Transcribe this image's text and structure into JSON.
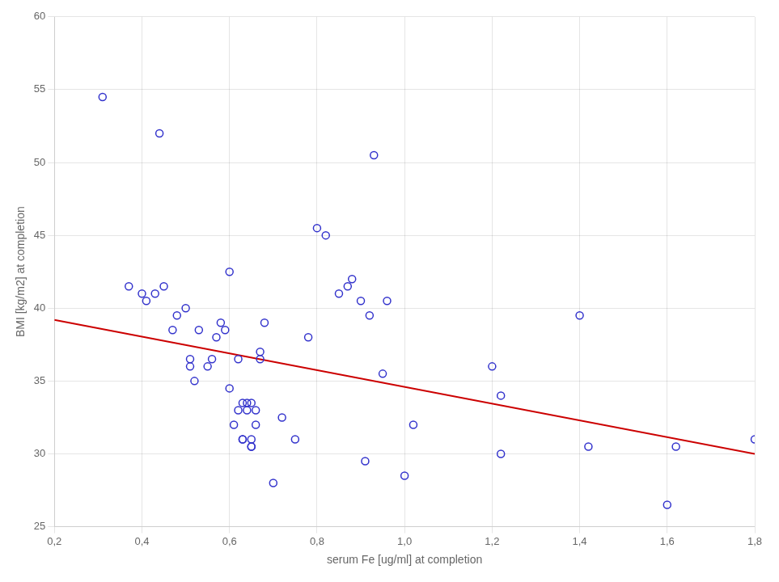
{
  "chart_data": {
    "type": "scatter",
    "xlabel": "serum Fe [ug/ml] at completion",
    "ylabel": "BMI [kg/m2] at completion",
    "series": [
      {
        "type": "scatter",
        "marker": "circle",
        "color": "#3333cc",
        "x": [
          0.31,
          0.37,
          0.4,
          0.41,
          0.43,
          0.44,
          0.45,
          0.47,
          0.48,
          0.5,
          0.51,
          0.51,
          0.52,
          0.53,
          0.55,
          0.56,
          0.57,
          0.58,
          0.59,
          0.6,
          0.6,
          0.61,
          0.62,
          0.62,
          0.63,
          0.63,
          0.63,
          0.64,
          0.64,
          0.65,
          0.65,
          0.65,
          0.65,
          0.66,
          0.66,
          0.67,
          0.67,
          0.68,
          0.7,
          0.72,
          0.75,
          0.78,
          0.8,
          0.82,
          0.85,
          0.87,
          0.88,
          0.9,
          0.91,
          0.92,
          0.93,
          0.95,
          0.96,
          1.0,
          1.02,
          1.2,
          1.22,
          1.22,
          1.4,
          1.42,
          1.6,
          1.62,
          1.8
        ],
        "values": [
          54.5,
          41.5,
          41.0,
          40.5,
          41.0,
          52.0,
          41.5,
          38.5,
          39.5,
          40.0,
          36.5,
          36.0,
          35.0,
          38.5,
          36.0,
          36.5,
          38.0,
          39.0,
          38.5,
          34.5,
          42.5,
          32.0,
          33.0,
          36.5,
          31.0,
          31.0,
          33.5,
          33.5,
          33.0,
          30.5,
          30.5,
          31.0,
          33.5,
          33.0,
          32.0,
          36.5,
          37.0,
          39.0,
          28.0,
          32.5,
          31.0,
          38.0,
          45.5,
          45.0,
          41.0,
          41.5,
          42.0,
          40.5,
          29.5,
          39.5,
          50.5,
          35.5,
          40.5,
          28.5,
          32.0,
          36.0,
          30.0,
          34.0,
          39.5,
          30.5,
          26.5,
          30.5,
          31.0
        ]
      },
      {
        "type": "line",
        "line_style": "solid",
        "color": "#cc0000",
        "x": [
          0.2,
          1.8
        ],
        "values": [
          39.2,
          30.0
        ]
      }
    ],
    "xlim": [
      0.2,
      1.8
    ],
    "ylim": [
      25,
      60
    ],
    "xticks": [
      {
        "value": 0.2,
        "label": "0,2"
      },
      {
        "value": 0.4,
        "label": "0,4"
      },
      {
        "value": 0.6,
        "label": "0,6"
      },
      {
        "value": 0.8,
        "label": "0,8"
      },
      {
        "value": 1.0,
        "label": "1,0"
      },
      {
        "value": 1.2,
        "label": "1,2"
      },
      {
        "value": 1.4,
        "label": "1,4"
      },
      {
        "value": 1.6,
        "label": "1,6"
      },
      {
        "value": 1.8,
        "label": "1,8"
      }
    ],
    "yticks": [
      25,
      30,
      35,
      40,
      45,
      50,
      55,
      60
    ],
    "grid": true
  }
}
